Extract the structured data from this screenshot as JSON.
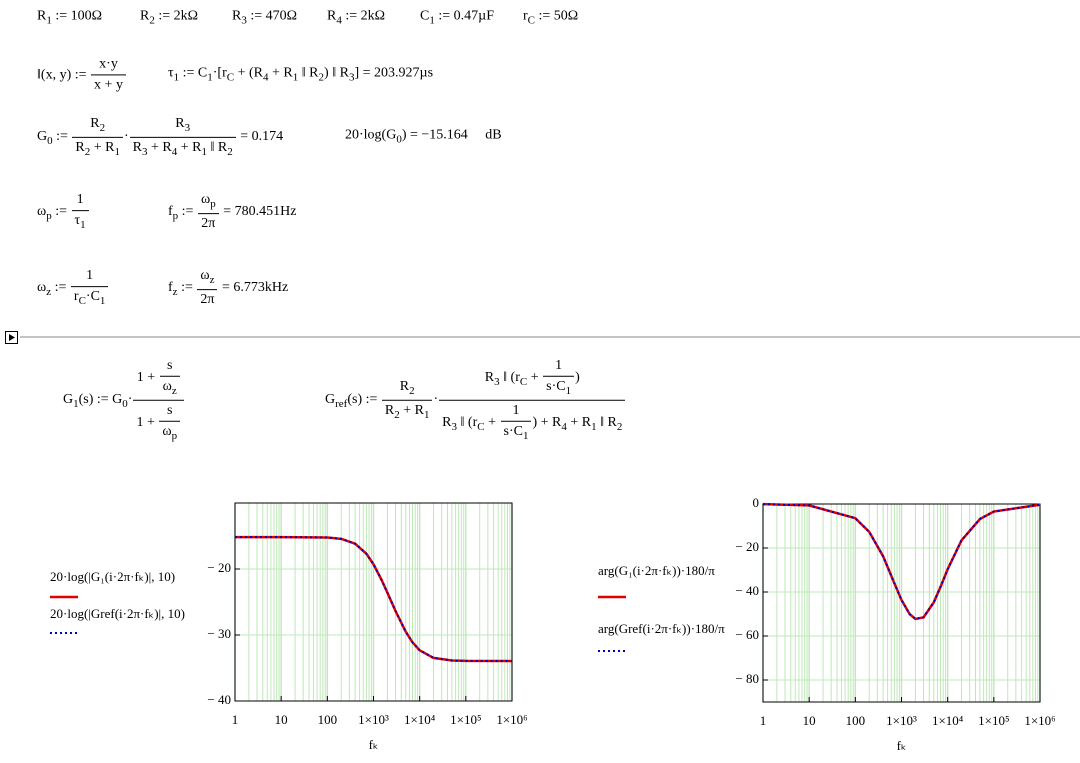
{
  "worksheet": {
    "rows": [
      [
        [
          "R",
          {
            "sub": "1"
          },
          " := 100Ω"
        ],
        [
          "R",
          {
            "sub": "2"
          },
          " := 2kΩ"
        ],
        [
          "R",
          {
            "sub": "3"
          },
          " := 470Ω"
        ],
        [
          "R",
          {
            "sub": "4"
          },
          " := 2kΩ"
        ],
        [
          "C",
          {
            "sub": "1"
          },
          " := 0.47µF"
        ],
        [
          "r",
          {
            "sub": "C"
          },
          " := 50Ω"
        ]
      ],
      [
        [
          "‖(x, y) := ",
          {
            "frac": [
              "x·y",
              "x + y"
            ]
          }
        ],
        [
          "τ",
          {
            "sub": "1"
          },
          " := C",
          {
            "sub": "1"
          },
          "·[r",
          {
            "sub": "C"
          },
          " + (R",
          {
            "sub": "4"
          },
          " + R",
          {
            "sub": "1"
          },
          " ‖ R",
          {
            "sub": "2"
          },
          ") ‖ R",
          {
            "sub": "3"
          },
          "] = 203.927µs"
        ]
      ],
      [
        [
          "G",
          {
            "sub": "0"
          },
          " := ",
          {
            "frac": [
              [
                "R",
                {
                  "sub": "2"
                }
              ],
              [
                "R",
                {
                  "sub": "2"
                },
                " + R",
                {
                  "sub": "1"
                }
              ]
            ]
          },
          "·",
          {
            "frac": [
              [
                "R",
                {
                  "sub": "3"
                }
              ],
              [
                "R",
                {
                  "sub": "3"
                },
                " + R",
                {
                  "sub": "4"
                },
                " + R",
                {
                  "sub": "1"
                },
                " ‖ R",
                {
                  "sub": "2"
                }
              ]
            ]
          },
          " = 0.174"
        ],
        [
          "20·log(G",
          {
            "sub": "0"
          },
          ") = −15.164     dB"
        ]
      ],
      [
        [
          "ω",
          {
            "sub": "p"
          },
          " := ",
          {
            "frac": [
              "1",
              [
                "τ",
                {
                  "sub": "1"
                }
              ]
            ]
          }
        ],
        [
          "f",
          {
            "sub": "p"
          },
          " := ",
          {
            "frac": [
              [
                "ω",
                {
                  "sub": "p"
                }
              ],
              "2π"
            ]
          },
          " = 780.451Hz"
        ]
      ],
      [
        [
          "ω",
          {
            "sub": "z"
          },
          " := ",
          {
            "frac": [
              "1",
              [
                "r",
                {
                  "sub": "C"
                },
                "·C",
                {
                  "sub": "1"
                }
              ]
            ]
          }
        ],
        [
          "f",
          {
            "sub": "z"
          },
          " := ",
          {
            "frac": [
              [
                "ω",
                {
                  "sub": "z"
                }
              ],
              "2π"
            ]
          },
          " = 6.773kHz"
        ]
      ],
      [
        [
          "G",
          {
            "sub": "1"
          },
          "(s) := G",
          {
            "sub": "0"
          },
          "·",
          {
            "frac": [
              [
                "1 + ",
                {
                  "frac": [
                    "s",
                    [
                      "ω",
                      {
                        "sub": "z"
                      }
                    ]
                  ]
                }
              ],
              [
                "1 + ",
                {
                  "frac": [
                    "s",
                    [
                      "ω",
                      {
                        "sub": "p"
                      }
                    ]
                  ]
                }
              ]
            ]
          }
        ],
        [
          "G",
          {
            "sub": "ref"
          },
          "(s) := ",
          {
            "frac": [
              [
                "R",
                {
                  "sub": "2"
                }
              ],
              [
                "R",
                {
                  "sub": "2"
                },
                " + R",
                {
                  "sub": "1"
                }
              ]
            ]
          },
          "·",
          {
            "frac": [
              [
                "R",
                {
                  "sub": "3"
                },
                " ‖ (r",
                {
                  "sub": "C"
                },
                " + ",
                {
                  "frac": [
                    "1",
                    [
                      "s·C",
                      {
                        "sub": "1"
                      }
                    ]
                  ]
                },
                ")"
              ],
              [
                "R",
                {
                  "sub": "3"
                },
                " ‖ (r",
                {
                  "sub": "C"
                },
                " + ",
                {
                  "frac": [
                    "1",
                    [
                      "s·C",
                      {
                        "sub": "1"
                      }
                    ]
                  ]
                },
                ") + R",
                {
                  "sub": "4"
                },
                " + R",
                {
                  "sub": "1"
                },
                " ‖ R",
                {
                  "sub": "2"
                }
              ]
            ]
          }
        ]
      ]
    ]
  },
  "chart_data": [
    {
      "type": "line",
      "xscale": "log",
      "grid": true,
      "grid_color": "#bfe8b8",
      "x": [
        1,
        10,
        100,
        200,
        400,
        700,
        1000,
        1500,
        2000,
        3000,
        5000,
        7000,
        10000,
        20000,
        50000,
        100000,
        1000000
      ],
      "series": [
        {
          "name": "20·log(|G₁(i·2π·fₖ)|, 10)",
          "color": "#e00000",
          "line_style": "solid",
          "values": [
            -15.164,
            -15.165,
            -15.234,
            -15.436,
            -16.162,
            -17.682,
            -19.289,
            -21.672,
            -23.59,
            -26.366,
            -29.512,
            -31.118,
            -32.32,
            -33.471,
            -33.858,
            -33.927,
            -33.95
          ]
        },
        {
          "name": "20·log(|Gref(i·2π·fₖ)|, 10)",
          "color": "#0000c0",
          "line_style": "dotted",
          "values": [
            -15.164,
            -15.165,
            -15.234,
            -15.436,
            -16.162,
            -17.682,
            -19.289,
            -21.672,
            -23.59,
            -26.366,
            -29.512,
            -31.118,
            -32.32,
            -33.471,
            -33.858,
            -33.927,
            -33.95
          ]
        }
      ],
      "xlim": [
        1,
        1000000
      ],
      "xticks": [
        1,
        10,
        100,
        {
          "value": 1000,
          "label": "1×10³"
        },
        {
          "value": 10000,
          "label": "1×10⁴"
        },
        {
          "value": 100000,
          "label": "1×10⁵"
        },
        {
          "value": 1000000,
          "label": "1×10⁶"
        }
      ],
      "ylim": [
        -40,
        -10
      ],
      "yticks": [
        {
          "value": -40,
          "label": "− 40"
        },
        {
          "value": -30,
          "label": "− 30"
        },
        {
          "value": -20,
          "label": "− 20"
        }
      ],
      "xlabel": "fₖ"
    },
    {
      "type": "line",
      "xscale": "log",
      "grid": true,
      "grid_color": "#bfe8b8",
      "x": [
        1,
        10,
        100,
        200,
        400,
        700,
        1000,
        1500,
        2000,
        3000,
        5000,
        7000,
        10000,
        20000,
        50000,
        100000,
        1000000
      ],
      "series": [
        {
          "name": "arg(G₁(i·2π·fₖ))·180/π",
          "color": "#e00000",
          "line_style": "solid",
          "values": [
            -0.065,
            -0.649,
            -6.455,
            -12.683,
            -23.757,
            -35.99,
            -43.63,
            -50.02,
            -52.24,
            -51.53,
            -44.7,
            -37.69,
            -29.65,
            -16.48,
            -6.82,
            -3.42,
            -0.34
          ]
        },
        {
          "name": "arg(Gref(i·2π·fₖ))·180/π",
          "color": "#0000c0",
          "line_style": "dotted",
          "values": [
            -0.065,
            -0.649,
            -6.455,
            -12.683,
            -23.757,
            -35.99,
            -43.63,
            -50.02,
            -52.24,
            -51.53,
            -44.7,
            -37.69,
            -29.65,
            -16.48,
            -6.82,
            -3.42,
            -0.34
          ]
        }
      ],
      "xlim": [
        1,
        1000000
      ],
      "xticks": [
        1,
        10,
        100,
        {
          "value": 1000,
          "label": "1×10³"
        },
        {
          "value": 10000,
          "label": "1×10⁴"
        },
        {
          "value": 100000,
          "label": "1×10⁵"
        },
        {
          "value": 1000000,
          "label": "1×10⁶"
        }
      ],
      "ylim": [
        -90,
        0
      ],
      "yticks": [
        {
          "value": -80,
          "label": "− 80"
        },
        {
          "value": -60,
          "label": "− 60"
        },
        {
          "value": -40,
          "label": "− 40"
        },
        {
          "value": -20,
          "label": "− 20"
        },
        0
      ],
      "xlabel": "fₖ"
    }
  ]
}
